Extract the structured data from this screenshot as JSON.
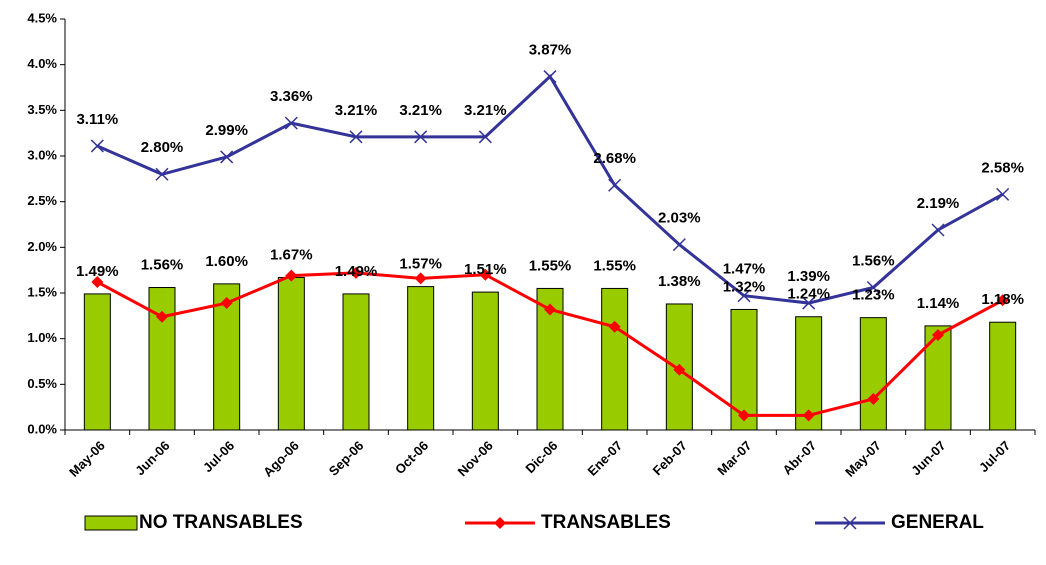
{
  "chart_data": {
    "type": "bar_line",
    "categories": [
      "May-06",
      "Jun-06",
      "Jul-06",
      "Ago-06",
      "Sep-06",
      "Oct-06",
      "Nov-06",
      "Dic-06",
      "Ene-07",
      "Feb-07",
      "Mar-07",
      "Abr-07",
      "May-07",
      "Jun-07",
      "Jul-07"
    ],
    "series": [
      {
        "name": "NO TRANSABLES",
        "type": "bar",
        "color": "#99cc00",
        "values": [
          1.49,
          1.56,
          1.6,
          1.67,
          1.49,
          1.57,
          1.51,
          1.55,
          1.55,
          1.38,
          1.32,
          1.24,
          1.23,
          1.14,
          1.18
        ],
        "value_labels": [
          "1.49%",
          "1.56%",
          "1.60%",
          "1.67%",
          "1.49%",
          "1.57%",
          "1.51%",
          "1.55%",
          "1.55%",
          "1.38%",
          "1.32%",
          "1.24%",
          "1.23%",
          "1.14%",
          "1.18%"
        ]
      },
      {
        "name": "TRANSABLES",
        "type": "line",
        "color": "#ff0000",
        "values": [
          1.62,
          1.24,
          1.39,
          1.69,
          1.72,
          1.66,
          1.7,
          1.32,
          1.13,
          0.66,
          0.16,
          0.16,
          0.34,
          1.04,
          1.42
        ]
      },
      {
        "name": "GENERAL",
        "type": "line",
        "color": "#333399",
        "values": [
          3.11,
          2.8,
          2.99,
          3.36,
          3.21,
          3.21,
          3.21,
          3.87,
          2.68,
          2.03,
          1.47,
          1.39,
          1.56,
          2.19,
          2.58
        ],
        "value_labels": [
          "3.11%",
          "2.80%",
          "2.99%",
          "3.36%",
          "3.21%",
          "3.21%",
          "3.21%",
          "3.87%",
          "2.68%",
          "2.03%",
          "1.47%",
          "1.39%",
          "1.56%",
          "2.19%",
          "2.58%"
        ]
      }
    ],
    "ylim": [
      0,
      4.5
    ],
    "yticks": [
      {
        "value": 0,
        "label": "0.0%"
      },
      {
        "value": 0.5,
        "label": "0.5%"
      },
      {
        "value": 1,
        "label": "1.0%"
      },
      {
        "value": 1.5,
        "label": "1.5%"
      },
      {
        "value": 2,
        "label": "2.0%"
      },
      {
        "value": 2.5,
        "label": "2.5%"
      },
      {
        "value": 3,
        "label": "3.0%"
      },
      {
        "value": 3.5,
        "label": "3.5%"
      },
      {
        "value": 4,
        "label": "4.0%"
      },
      {
        "value": 4.5,
        "label": "4.5%"
      }
    ],
    "legend": "bottom"
  }
}
